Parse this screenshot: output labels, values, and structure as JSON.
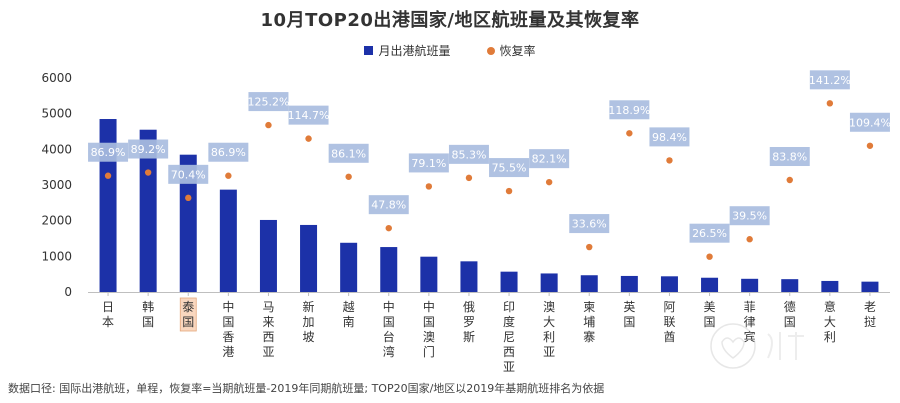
{
  "chart_data": {
    "type": "bar",
    "title": "10月TOP20出港国家/地区航班量及其恢复率",
    "categories": [
      "日本",
      "韩国",
      "泰国",
      "中国香港",
      "马来西亚",
      "新加坡",
      "越南",
      "中国台湾",
      "中国澳门",
      "俄罗斯",
      "印度尼西亚",
      "澳大利亚",
      "柬埔寨",
      "英国",
      "阿联酋",
      "美国",
      "菲律宾",
      "德国",
      "意大利",
      "老挝"
    ],
    "highlight_category": "泰国",
    "series": [
      {
        "name": "月出港航班量",
        "type": "bar",
        "color": "#1c31a8",
        "values": [
          4850,
          4550,
          3850,
          2870,
          2020,
          1880,
          1380,
          1260,
          990,
          860,
          570,
          520,
          470,
          450,
          440,
          400,
          370,
          360,
          310,
          290
        ]
      },
      {
        "name": "恢复率",
        "type": "scatter",
        "color": "#e07b39",
        "values": [
          86.9,
          89.2,
          70.4,
          86.9,
          125.2,
          114.7,
          86.1,
          47.8,
          79.1,
          85.3,
          75.5,
          82.1,
          33.6,
          118.9,
          98.4,
          26.5,
          39.5,
          83.8,
          141.2,
          109.4
        ],
        "labels": [
          "86.9%",
          "89.2%",
          "70.4%",
          "86.9%",
          "125.2%",
          "114.7%",
          "86.1%",
          "47.8%",
          "79.1%",
          "85.3%",
          "75.5%",
          "82.1%",
          "33.6%",
          "118.9%",
          "98.4%",
          "26.5%",
          "39.5%",
          "83.8%",
          "141.2%",
          "109.4%"
        ],
        "y_position_values": [
          3260,
          3350,
          2640,
          3260,
          4680,
          4300,
          3230,
          1790,
          2960,
          3200,
          2830,
          3080,
          1260,
          4450,
          3690,
          990,
          1480,
          3140,
          5290,
          4100
        ]
      }
    ],
    "yticks": [
      0,
      1000,
      2000,
      3000,
      4000,
      5000,
      6000
    ],
    "ylim": [
      0,
      6000
    ],
    "grid": false,
    "legend_position": "top-center"
  },
  "footnote": "数据口径: 国际出港航班，单程，恢复率=当期航班量-2019年同期航班量; TOP20国家/地区以2019年基期航班排名为依据"
}
